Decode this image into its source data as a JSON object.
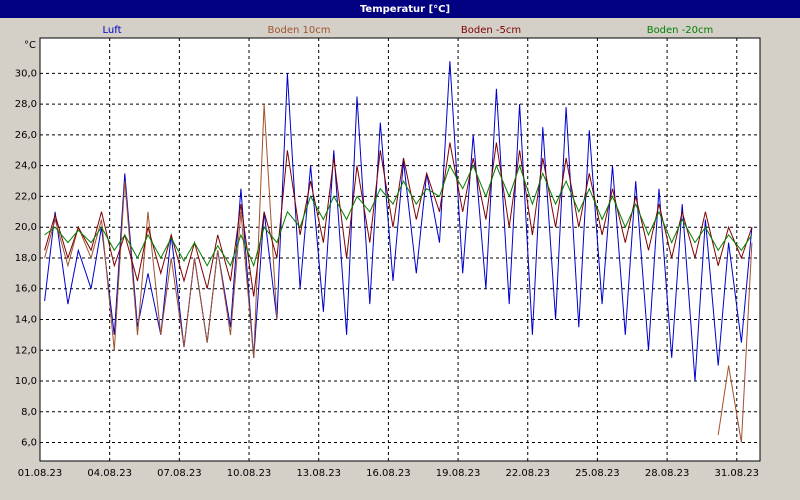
{
  "chart_data": {
    "type": "line",
    "title": "Temperatur [°C]",
    "y_label": "°C",
    "x": [
      0.2,
      0.65,
      1.2,
      1.65,
      2.2,
      2.65,
      3.2,
      3.65,
      4.2,
      4.65,
      5.2,
      5.65,
      6.2,
      6.65,
      7.2,
      7.65,
      8.2,
      8.65,
      9.2,
      9.65,
      10.2,
      10.65,
      11.2,
      11.65,
      12.2,
      12.65,
      13.2,
      13.65,
      14.2,
      14.65,
      15.2,
      15.65,
      16.2,
      16.65,
      17.2,
      17.65,
      18.2,
      18.65,
      19.2,
      19.65,
      20.2,
      20.65,
      21.2,
      21.65,
      22.2,
      22.65,
      23.2,
      23.65,
      24.2,
      24.65,
      25.2,
      25.65,
      26.2,
      26.65,
      27.2,
      27.65,
      28.2,
      28.65,
      29.2,
      29.65,
      30.2,
      30.65
    ],
    "xlim": [
      0,
      31
    ],
    "xticks": [
      {
        "value": 0,
        "label": "01.08.23"
      },
      {
        "value": 3,
        "label": "04.08.23"
      },
      {
        "value": 6,
        "label": "07.08.23"
      },
      {
        "value": 9,
        "label": "10.08.23"
      },
      {
        "value": 12,
        "label": "13.08.23"
      },
      {
        "value": 15,
        "label": "16.08.23"
      },
      {
        "value": 18,
        "label": "19.08.23"
      },
      {
        "value": 21,
        "label": "22.08.23"
      },
      {
        "value": 24,
        "label": "25.08.23"
      },
      {
        "value": 27,
        "label": "28.08.23"
      },
      {
        "value": 30,
        "label": "31.08.23"
      }
    ],
    "ylim": [
      4.8,
      32.3
    ],
    "yticks": [
      {
        "value": 6,
        "label": "6,0"
      },
      {
        "value": 8,
        "label": "8,0"
      },
      {
        "value": 10,
        "label": "10,0"
      },
      {
        "value": 12,
        "label": "12,0"
      },
      {
        "value": 14,
        "label": "14,0"
      },
      {
        "value": 16,
        "label": "16,0"
      },
      {
        "value": 18,
        "label": "18,0"
      },
      {
        "value": 20,
        "label": "20,0"
      },
      {
        "value": 22,
        "label": "22,0"
      },
      {
        "value": 24,
        "label": "24,0"
      },
      {
        "value": 26,
        "label": "26,0"
      },
      {
        "value": 28,
        "label": "28,0"
      },
      {
        "value": 30,
        "label": "30,0"
      }
    ],
    "grid": true,
    "series": [
      {
        "name": "Luft",
        "color": "#0000cc",
        "values": [
          15.2,
          21,
          15,
          18.5,
          16,
          20,
          13,
          23.5,
          13.5,
          17,
          13,
          19.5,
          12.2,
          18,
          12.5,
          18.5,
          13.5,
          22.5,
          11.5,
          21,
          14,
          30,
          16,
          24,
          14.5,
          25,
          13,
          28.5,
          15,
          26.8,
          16.5,
          24.3,
          17,
          23.5,
          19,
          30.8,
          17,
          26,
          16,
          29,
          15,
          28,
          13,
          26.5,
          14,
          27.8,
          13.5,
          26.3,
          15,
          24,
          13,
          23,
          12,
          22.5,
          11.5,
          21.5,
          10,
          20.5,
          11,
          19,
          12.5,
          20
        ]
      },
      {
        "name": "Boden 10cm",
        "color": "#a0522d",
        "values": [
          18,
          20.5,
          17.5,
          20,
          18,
          20.5,
          12,
          23,
          13,
          21,
          13,
          18,
          12.2,
          18,
          12.5,
          18.5,
          13,
          21,
          11.5,
          28,
          14,
          null,
          null,
          null,
          null,
          null,
          null,
          null,
          null,
          null,
          null,
          null,
          null,
          null,
          null,
          null,
          null,
          null,
          null,
          null,
          null,
          null,
          null,
          null,
          null,
          null,
          null,
          null,
          null,
          null,
          null,
          null,
          null,
          null,
          null,
          null,
          null,
          null,
          6.5,
          11,
          6,
          19
        ]
      },
      {
        "name": "Boden -5cm",
        "color": "#800000",
        "values": [
          18.5,
          20.8,
          18,
          20,
          18.5,
          21,
          17.5,
          19.5,
          16.5,
          20,
          17,
          19.5,
          16.5,
          19,
          16,
          19.5,
          16.5,
          21.5,
          15.5,
          21,
          18,
          25,
          19.5,
          23,
          19,
          24.5,
          18,
          24,
          19,
          25,
          20,
          24.5,
          20.5,
          23.5,
          21,
          25.5,
          21,
          24.5,
          20.5,
          25.5,
          20,
          25,
          19.5,
          24.5,
          20,
          24.5,
          20,
          23.5,
          19.5,
          22.5,
          19,
          22,
          18.5,
          21.5,
          18,
          21,
          18,
          21,
          17.5,
          20,
          18,
          20
        ]
      },
      {
        "name": "Boden -20cm",
        "color": "#008000",
        "values": [
          19.5,
          20,
          19,
          19.8,
          19,
          20,
          18.5,
          19.5,
          18,
          19.5,
          18,
          19.3,
          17.8,
          19,
          17.5,
          18.8,
          17.5,
          19.5,
          17.5,
          20,
          19,
          21,
          20,
          22,
          20.5,
          22,
          20.5,
          22,
          21,
          22.5,
          21.5,
          23,
          21.5,
          22.5,
          22,
          24,
          22.5,
          24,
          22,
          24,
          22,
          24,
          21.5,
          23.5,
          21.5,
          23,
          21,
          22.5,
          20.5,
          22,
          20,
          21.5,
          19.5,
          21,
          19,
          20.5,
          19,
          20,
          18.5,
          19.5,
          18.5,
          19.5
        ]
      }
    ]
  }
}
